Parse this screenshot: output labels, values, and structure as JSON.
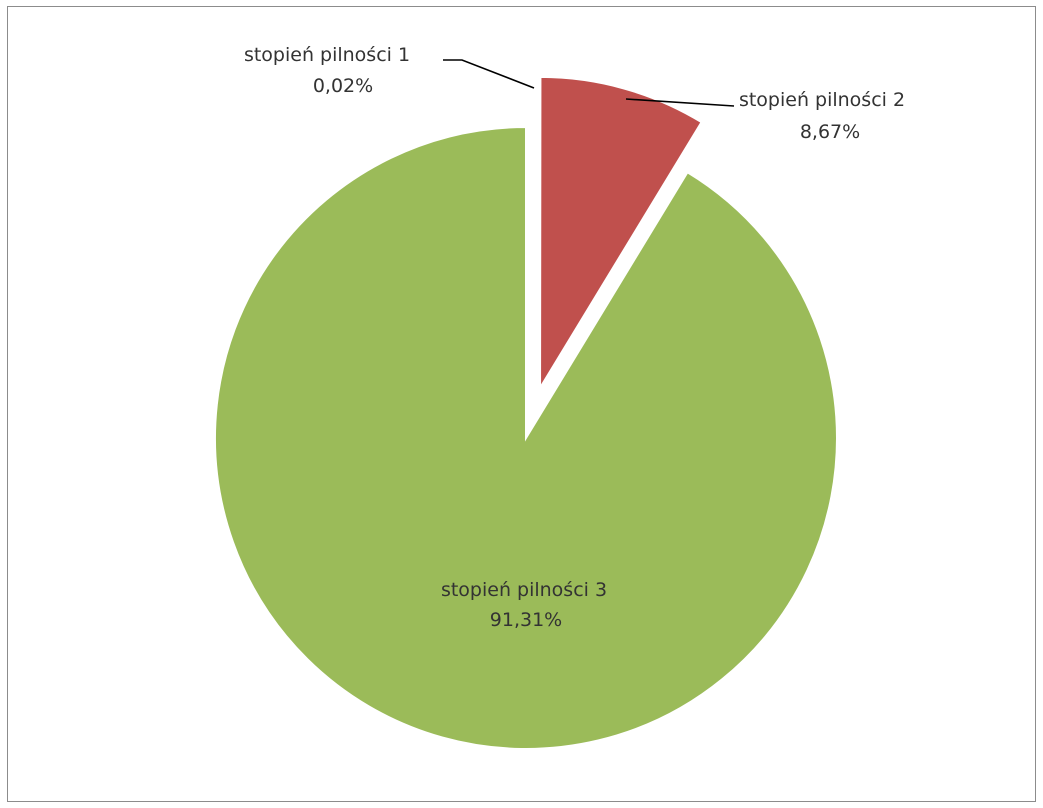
{
  "chart_data": {
    "type": "pie",
    "title": "",
    "slices": [
      {
        "label": "stopień pilności 1",
        "value": 0.02,
        "value_text": "0,02%",
        "color": "#4f81bd",
        "exploded": true
      },
      {
        "label": "stopień pilności 2",
        "value": 8.67,
        "value_text": "8,67%",
        "color": "#c0504d",
        "exploded": true
      },
      {
        "label": "stopień pilności 3",
        "value": 91.31,
        "value_text": "91,31%",
        "color": "#9bbb59",
        "exploded": false
      }
    ],
    "legend": "none",
    "data_labels": "category name and percentage",
    "start_angle": "12 o'clock, clockwise"
  }
}
